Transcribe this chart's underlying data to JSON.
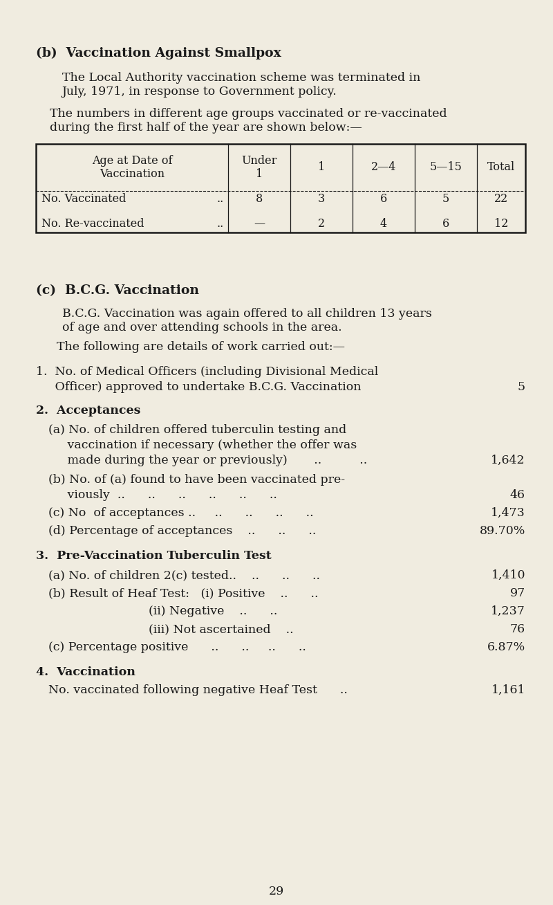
{
  "bg_color": "#f0ece0",
  "text_color": "#1a1a1a",
  "page_number": "29",
  "section_b_title": "(b)  Vaccination Against Smallpox",
  "section_c_title": "(c)  B.C.G. Vaccination",
  "table_headers": [
    "Age at Date of\nVaccination",
    "Under\n1",
    "1",
    "2—4",
    "5—15",
    "Total"
  ],
  "table_row1_label": "No. Vaccinated",
  "table_row2_label": "No. Re-vaccinated",
  "table_row1_values": [
    "8",
    "3",
    "6",
    "5",
    "22"
  ],
  "table_row2_values": [
    "—",
    "2",
    "4",
    "6",
    "12"
  ],
  "item1_value": "5",
  "item2a_value": "1,642",
  "item2b_value": "46",
  "item2c_value": "1,473",
  "item2d_value": "89.70%",
  "item3a_value": "1,410",
  "item3b_value": "97",
  "item3b_ii_value": "1,237",
  "item3b_iii_value": "76",
  "item3c_value": "6.87%",
  "item4a_value": "1,161"
}
